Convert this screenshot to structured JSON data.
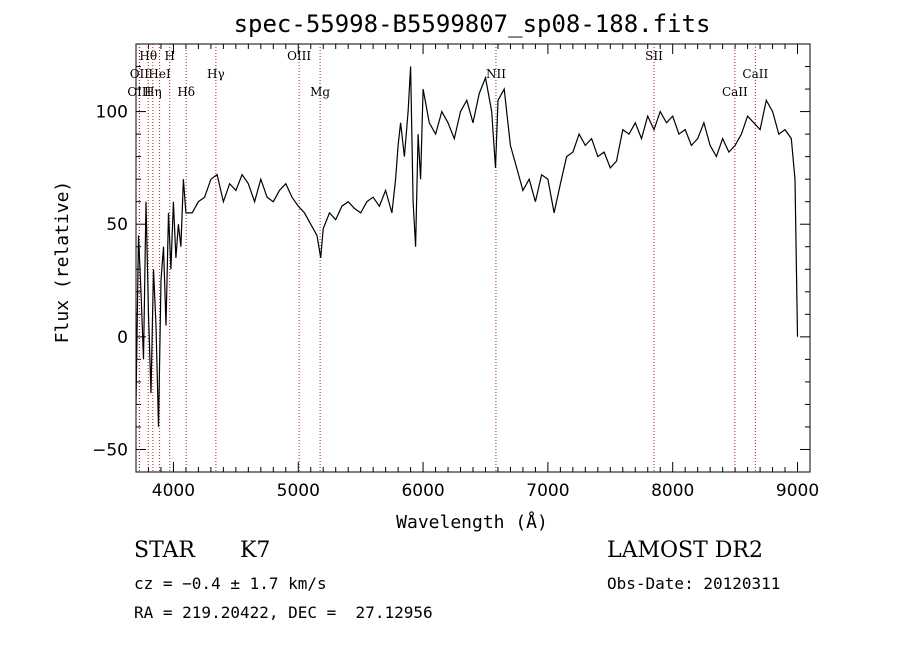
{
  "chart_data": {
    "type": "line",
    "title": "spec-55998-B5599807_sp08-188.fits",
    "xlabel": "Wavelength (Å)",
    "ylabel": "Flux (relative)",
    "xlim": [
      3700,
      9100
    ],
    "ylim": [
      -60,
      130
    ],
    "xticks": [
      4000,
      5000,
      6000,
      7000,
      8000,
      9000
    ],
    "yticks": [
      -50,
      0,
      50,
      100
    ],
    "grid": false,
    "series": [
      {
        "x": [
          3700,
          3720,
          3740,
          3760,
          3780,
          3800,
          3820,
          3840,
          3860,
          3880,
          3900,
          3920,
          3940,
          3960,
          3980,
          4000,
          4020,
          4040,
          4060,
          4080,
          4100,
          4150,
          4200,
          4250,
          4300,
          4350,
          4400,
          4450,
          4500,
          4550,
          4600,
          4650,
          4700,
          4750,
          4800,
          4850,
          4900,
          4950,
          5000,
          5050,
          5100,
          5150,
          5180,
          5200,
          5250,
          5300,
          5350,
          5400,
          5450,
          5500,
          5550,
          5600,
          5650,
          5700,
          5750,
          5780,
          5800,
          5820,
          5850,
          5880,
          5900,
          5920,
          5940,
          5960,
          5980,
          6000,
          6050,
          6100,
          6150,
          6200,
          6250,
          6300,
          6350,
          6400,
          6450,
          6500,
          6550,
          6580,
          6600,
          6650,
          6700,
          6750,
          6800,
          6850,
          6900,
          6950,
          7000,
          7050,
          7100,
          7150,
          7200,
          7250,
          7300,
          7350,
          7400,
          7450,
          7500,
          7550,
          7600,
          7650,
          7700,
          7750,
          7800,
          7850,
          7900,
          7950,
          8000,
          8050,
          8100,
          8150,
          8200,
          8250,
          8300,
          8350,
          8400,
          8450,
          8500,
          8550,
          8600,
          8650,
          8700,
          8750,
          8800,
          8850,
          8900,
          8950,
          8980,
          9000
        ],
        "y": [
          -30,
          45,
          20,
          -10,
          60,
          10,
          -25,
          30,
          5,
          -40,
          25,
          40,
          5,
          55,
          30,
          60,
          35,
          50,
          40,
          70,
          55,
          55,
          60,
          62,
          70,
          72,
          60,
          68,
          65,
          72,
          68,
          60,
          70,
          62,
          60,
          65,
          68,
          62,
          58,
          55,
          50,
          45,
          35,
          48,
          55,
          52,
          58,
          60,
          57,
          55,
          60,
          62,
          58,
          65,
          55,
          70,
          85,
          95,
          80,
          100,
          120,
          60,
          40,
          90,
          70,
          110,
          95,
          90,
          100,
          95,
          88,
          100,
          105,
          95,
          108,
          115,
          100,
          75,
          105,
          110,
          85,
          75,
          65,
          70,
          60,
          72,
          70,
          55,
          68,
          80,
          82,
          90,
          85,
          88,
          80,
          82,
          75,
          78,
          92,
          90,
          95,
          88,
          98,
          92,
          100,
          95,
          98,
          90,
          92,
          85,
          88,
          95,
          85,
          80,
          88,
          82,
          85,
          90,
          98,
          95,
          92,
          105,
          100,
          90,
          92,
          88,
          70,
          0
        ]
      }
    ],
    "line_markers": [
      {
        "label": "Hθ",
        "x": 3798,
        "row": 1
      },
      {
        "label": "H",
        "x": 3970,
        "row": 1
      },
      {
        "label": "OII",
        "x": 3727,
        "row": 2
      },
      {
        "label": "HeI",
        "x": 3889,
        "row": 2
      },
      {
        "label": "Hγ",
        "x": 4340,
        "row": 2
      },
      {
        "label": "OIII",
        "x": 3727,
        "row": 3
      },
      {
        "label": "Hη",
        "x": 3835,
        "row": 3
      },
      {
        "label": "Hδ",
        "x": 4102,
        "row": 3
      },
      {
        "label": "OIII",
        "x": 5007,
        "row": 1
      },
      {
        "label": "Mg",
        "x": 5175,
        "row": 3
      },
      {
        "label": "NII",
        "x": 6584,
        "row": 2
      },
      {
        "label": "SII",
        "x": 7850,
        "row": 1
      },
      {
        "label": "CaII",
        "x": 8498,
        "row": 3
      },
      {
        "label": "CaII",
        "x": 8662,
        "row": 2
      }
    ]
  },
  "info": {
    "object_class": "STAR",
    "subclass": "K7",
    "redshift_line": "cz = −0.4 ± 1.7 km/s",
    "coords_line": "RA = 219.20422, DEC =  27.12956",
    "survey": "LAMOST DR2",
    "obs_date": "Obs-Date: 20120311"
  }
}
